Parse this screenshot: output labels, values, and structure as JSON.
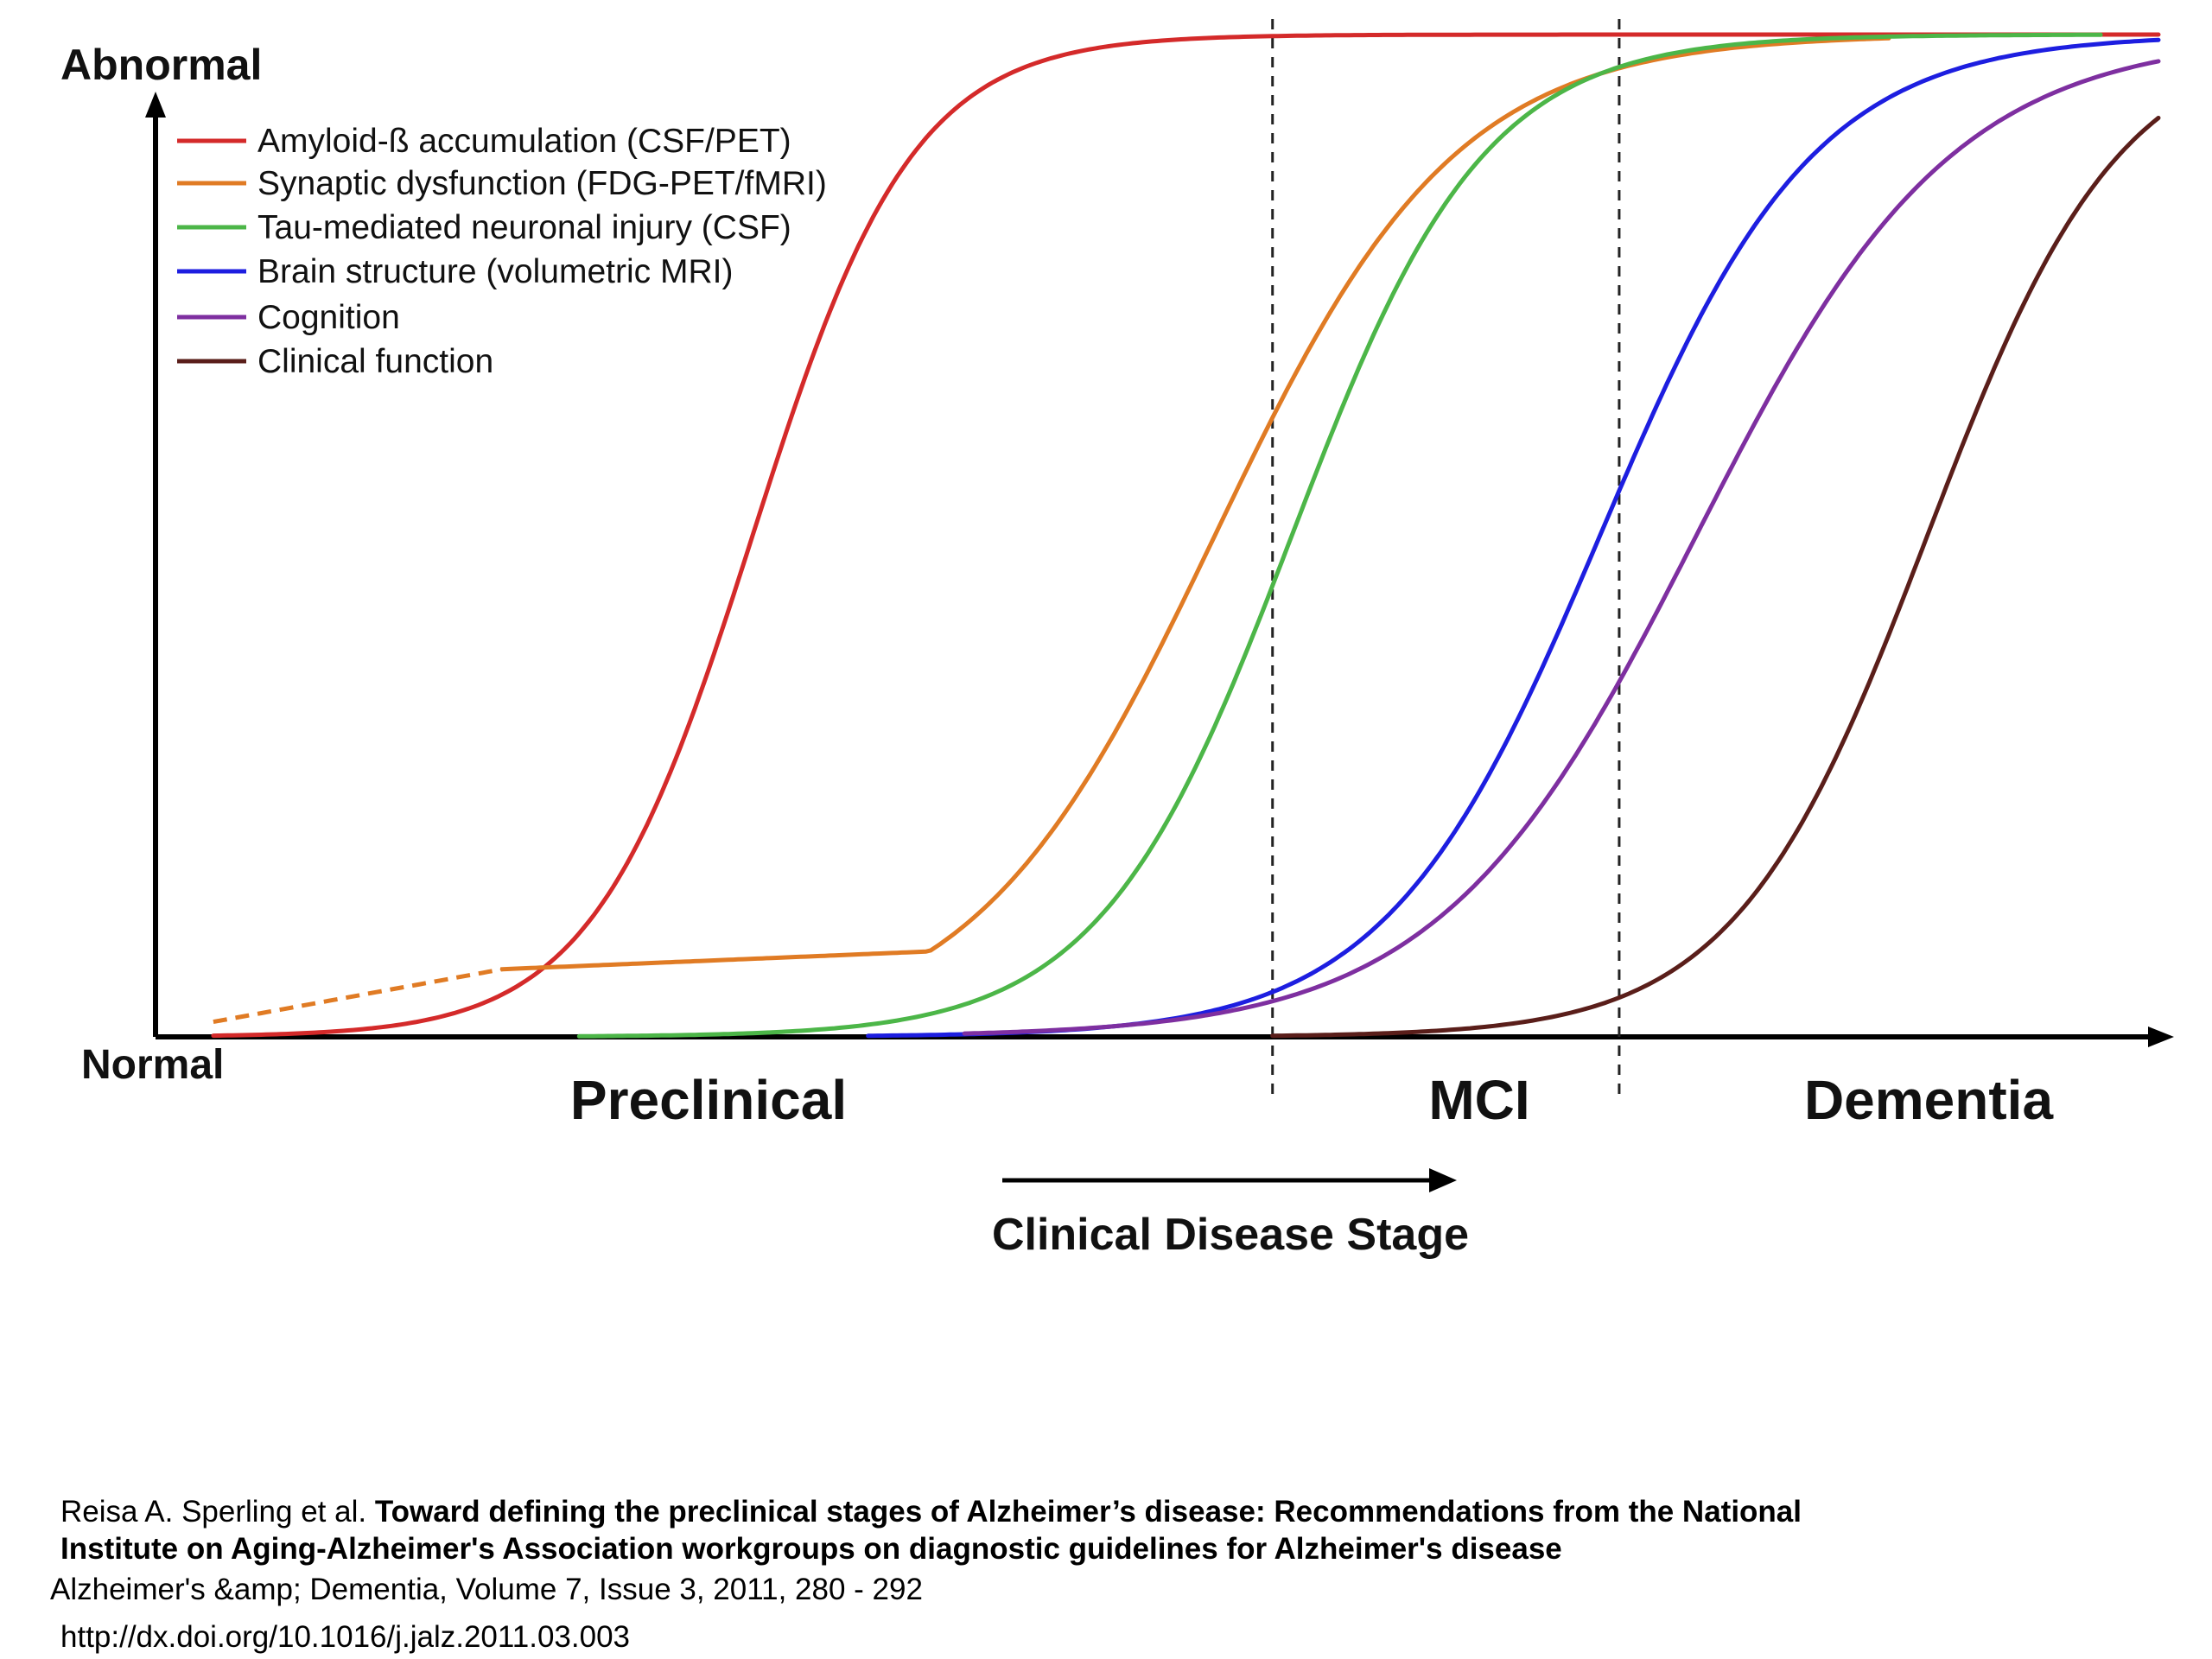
{
  "chart_data": {
    "type": "line",
    "y_top_label": "Abnormal",
    "y_bottom_label": "Normal",
    "x_arrow_label": "Clinical Disease Stage",
    "stages": [
      "Preclinical",
      "MCI",
      "Dementia"
    ],
    "stage_boundaries": [
      58,
      76
    ],
    "xlim": [
      0,
      104
    ],
    "ylim": [
      0,
      100
    ],
    "grid": false,
    "legend_position": "top-left",
    "series": [
      {
        "name": "Amyloid-ß accumulation (CSF/PET)",
        "color": "#d42a2a",
        "midpoint": 31,
        "steepness": 0.24,
        "x_start": 3,
        "x_end": 104
      },
      {
        "name": "Synaptic dysfunction (FDG-PET/fMRI)",
        "color": "#e07b24",
        "midpoint": 55,
        "steepness": 0.16,
        "x_start": 3,
        "x_end": 90,
        "dashed_until": 18
      },
      {
        "name": "Tau-mediated neuronal injury (CSF)",
        "color": "#4cb648",
        "midpoint": 59,
        "steepness": 0.2,
        "x_start": 22,
        "x_end": 101
      },
      {
        "name": "Brain structure (volumetric MRI)",
        "color": "#1d1ee0",
        "midpoint": 75,
        "steepness": 0.18,
        "x_start": 37,
        "x_end": 104
      },
      {
        "name": "Cognition",
        "color": "#7e2fa0",
        "midpoint": 80,
        "steepness": 0.15,
        "x_start": 42,
        "x_end": 104
      },
      {
        "name": "Clinical function",
        "color": "#5a1e1a",
        "midpoint": 92,
        "steepness": 0.2,
        "x_start": 58,
        "x_end": 104
      }
    ]
  },
  "citation": {
    "authors": "Reisa A.  Sperling et al. ",
    "title_part1": "Toward defining the preclinical stages of Alzheimer’s disease: Recommendations from the National",
    "title_part2": "Institute on Aging-Alzheimer's Association workgroups on diagnostic guidelines for Alzheimer's disease",
    "journal": "Alzheimer's &amp; Dementia, Volume 7, Issue 3, 2011, 280 - 292",
    "doi": "http://dx.doi.org/10.1016/j.jalz.2011.03.003"
  }
}
